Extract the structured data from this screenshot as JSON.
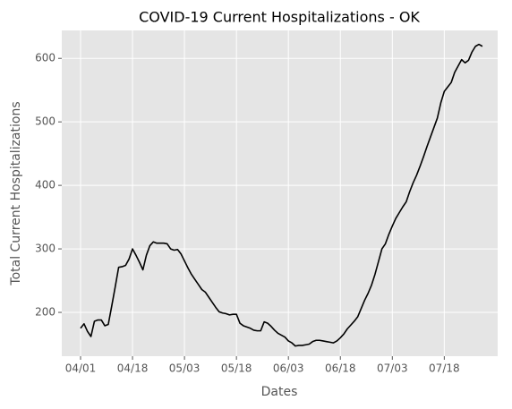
{
  "chart_data": {
    "type": "line",
    "title": "COVID-19 Current Hospitalizations - OK",
    "xlabel": "Dates",
    "ylabel": "Total Current Hospitalizations",
    "categories": [
      "04/01",
      null,
      null,
      null,
      null,
      null,
      null,
      null,
      null,
      null,
      null,
      null,
      null,
      null,
      null,
      "04/18",
      null,
      null,
      null,
      null,
      null,
      null,
      null,
      null,
      null,
      null,
      null,
      null,
      null,
      null,
      "05/03",
      null,
      null,
      null,
      null,
      null,
      null,
      null,
      null,
      null,
      null,
      null,
      null,
      null,
      null,
      "05/18",
      null,
      null,
      null,
      null,
      null,
      null,
      null,
      null,
      null,
      null,
      null,
      null,
      null,
      null,
      "06/03",
      null,
      null,
      null,
      null,
      null,
      null,
      null,
      null,
      null,
      null,
      null,
      null,
      null,
      null,
      "06/18",
      null,
      null,
      null,
      null,
      null,
      null,
      null,
      null,
      null,
      null,
      null,
      null,
      null,
      null,
      "07/03",
      null,
      null,
      null,
      null,
      null,
      null,
      null,
      null,
      null,
      null,
      null,
      null,
      null,
      null,
      "07/18",
      null,
      null,
      null,
      null,
      null,
      null,
      null,
      null,
      null,
      null,
      null
    ],
    "values": [
      175,
      182,
      170,
      162,
      186,
      188,
      188,
      179,
      181,
      210,
      240,
      271,
      272,
      274,
      284,
      300,
      290,
      279,
      267,
      290,
      305,
      311,
      309,
      309,
      309,
      308,
      300,
      298,
      299,
      292,
      281,
      270,
      260,
      252,
      244,
      236,
      232,
      224,
      216,
      208,
      201,
      199,
      198,
      196,
      197,
      197,
      183,
      179,
      177,
      175,
      172,
      171,
      171,
      185,
      183,
      178,
      172,
      167,
      164,
      161,
      155,
      152,
      147,
      148,
      148,
      149,
      150,
      154,
      156,
      156,
      155,
      154,
      153,
      152,
      155,
      160,
      166,
      174,
      180,
      186,
      193,
      206,
      219,
      230,
      243,
      260,
      280,
      300,
      308,
      323,
      336,
      348,
      357,
      366,
      374,
      390,
      404,
      416,
      430,
      445,
      461,
      476,
      491,
      506,
      530,
      548,
      555,
      562,
      578,
      588,
      598,
      593,
      597,
      610,
      619,
      622,
      619
    ],
    "color": "#000000",
    "ylim": [
      131,
      644
    ],
    "yticks": [
      200,
      300,
      400,
      500,
      600
    ],
    "grid": true
  }
}
